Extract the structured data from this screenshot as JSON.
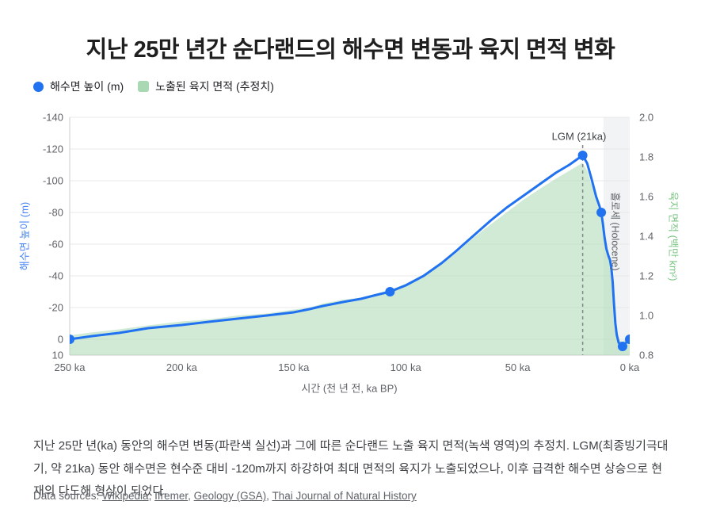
{
  "title": "지난 25만 년간 순다랜드의 해수면 변동과 육지 면적 변화",
  "legend": {
    "sea_level": "해수면 높이 (m)",
    "land_area": "노출된 육지 면적 (추정치)"
  },
  "colors": {
    "sea_line": "#2172f0",
    "sea_axis_label": "#4b87f5",
    "land_fill": "#a9d9b2",
    "land_axis_label": "#7cc585",
    "tick_text": "#5f6368",
    "gridline": "#e8e8e8",
    "axis_line": "#c9cbce",
    "lgm_line": "#85898d",
    "holocene_band": "#f1f3f4",
    "annotation_text": "#3c4043"
  },
  "chart_data": {
    "type": "line+area",
    "title": "지난 25만 년간 순다랜드의 해수면 변동과 육지 면적 변화",
    "x_axis": {
      "label": "시간 (천 년 전, ka BP)",
      "ticks": [
        250,
        200,
        150,
        100,
        50,
        0
      ],
      "tick_suffix": " ka",
      "range": [
        250,
        0
      ]
    },
    "y_left": {
      "label": "해수면 높이 (m)",
      "ticks": [
        -140,
        -120,
        -100,
        -80,
        -60,
        -40,
        -20,
        0,
        10
      ],
      "range": [
        -140,
        10
      ],
      "inverted": true
    },
    "y_right": {
      "label": "육지 면적 (백만 km²)",
      "ticks": [
        2.0,
        1.8,
        1.6,
        1.4,
        1.2,
        1.0,
        0.8
      ],
      "range": [
        0.8,
        2.0
      ]
    },
    "annotations": {
      "lgm": {
        "label": "LGM (21ka)",
        "ka": 21
      },
      "holocene": {
        "label": "홀로세 (Holocene)",
        "start_ka": 11.7,
        "end_ka": 0
      }
    },
    "series": [
      {
        "name": "해수면 높이 (m)",
        "type": "line",
        "axis": "left",
        "points": [
          [
            250,
            0
          ],
          [
            240,
            -2
          ],
          [
            228,
            -4
          ],
          [
            215,
            -7
          ],
          [
            200,
            -9
          ],
          [
            188,
            -11
          ],
          [
            175,
            -13
          ],
          [
            162,
            -15
          ],
          [
            150,
            -17
          ],
          [
            143,
            -19
          ],
          [
            137,
            -21
          ],
          [
            128,
            -23.5
          ],
          [
            120,
            -25.5
          ],
          [
            113,
            -28
          ],
          [
            107,
            -30
          ],
          [
            100,
            -34
          ],
          [
            92,
            -40
          ],
          [
            84,
            -48
          ],
          [
            78,
            -55
          ],
          [
            70,
            -65
          ],
          [
            62,
            -75
          ],
          [
            55,
            -83
          ],
          [
            48,
            -90
          ],
          [
            40,
            -98
          ],
          [
            33,
            -105
          ],
          [
            27,
            -110
          ],
          [
            21,
            -116
          ],
          [
            19,
            -111
          ],
          [
            17,
            -101
          ],
          [
            15,
            -90
          ],
          [
            13.5,
            -84
          ],
          [
            12.7,
            -80
          ],
          [
            12,
            -73
          ],
          [
            11.2,
            -64
          ],
          [
            10.4,
            -57
          ],
          [
            9.6,
            -53
          ],
          [
            8.8,
            -50
          ],
          [
            8.2,
            -45
          ],
          [
            7.6,
            -36
          ],
          [
            7,
            -22
          ],
          [
            6.4,
            -10
          ],
          [
            5.8,
            -3
          ],
          [
            5,
            2
          ],
          [
            4,
            4
          ],
          [
            3.2,
            4.5
          ],
          [
            2.2,
            3
          ],
          [
            1.2,
            1.5
          ],
          [
            0,
            0
          ]
        ],
        "markers": [
          [
            250,
            0
          ],
          [
            107,
            -30
          ],
          [
            21,
            -116
          ],
          [
            12.7,
            -80
          ],
          [
            3.2,
            4.5
          ],
          [
            0,
            0
          ]
        ]
      },
      {
        "name": "노출된 육지 면적 (추정치)",
        "type": "area",
        "axis": "right",
        "points": [
          [
            250,
            0.9
          ],
          [
            240,
            0.915
          ],
          [
            228,
            0.93
          ],
          [
            215,
            0.95
          ],
          [
            200,
            0.97
          ],
          [
            188,
            0.98
          ],
          [
            175,
            1.0
          ],
          [
            162,
            1.01
          ],
          [
            150,
            1.03
          ],
          [
            143,
            1.04
          ],
          [
            137,
            1.06
          ],
          [
            128,
            1.08
          ],
          [
            120,
            1.09
          ],
          [
            113,
            1.11
          ],
          [
            107,
            1.13
          ],
          [
            100,
            1.16
          ],
          [
            92,
            1.2
          ],
          [
            84,
            1.26
          ],
          [
            78,
            1.31
          ],
          [
            70,
            1.39
          ],
          [
            62,
            1.46
          ],
          [
            55,
            1.52
          ],
          [
            48,
            1.58
          ],
          [
            40,
            1.64
          ],
          [
            33,
            1.69
          ],
          [
            27,
            1.73
          ],
          [
            21,
            1.77
          ],
          [
            19,
            1.73
          ],
          [
            17,
            1.66
          ],
          [
            15,
            1.58
          ],
          [
            13.5,
            1.53
          ],
          [
            12.7,
            1.5
          ],
          [
            12,
            1.45
          ],
          [
            11.2,
            1.38
          ],
          [
            10.4,
            1.33
          ],
          [
            9.6,
            1.3
          ],
          [
            8.8,
            1.28
          ],
          [
            8.2,
            1.24
          ],
          [
            7.6,
            1.17
          ],
          [
            7,
            1.07
          ],
          [
            6.4,
            0.98
          ],
          [
            5.8,
            0.92
          ],
          [
            5,
            0.885
          ],
          [
            4,
            0.87
          ],
          [
            3.2,
            0.866
          ],
          [
            2.2,
            0.878
          ],
          [
            1.2,
            0.889
          ],
          [
            0,
            0.9
          ]
        ]
      }
    ]
  },
  "caption": "지난 25만 년(ka) 동안의 해수면 변동(파란색 실선)과 그에 따른 순다랜드 노출 육지 면적(녹색 영역)의 추정치. LGM(최종빙기극대기, 약 21ka) 동안 해수면은 현수준 대비 -120m까지 하강하여 최대 면적의 육지가 노출되었으나, 이후 급격한 해수면 상승으로 현재의 다도해 형상이 되었다.",
  "sources": {
    "prefix": "Data sources: ",
    "separator": ", ",
    "links": [
      "Wikipedia",
      "Ifremer",
      "Geology (GSA)",
      "Thai Journal of Natural History"
    ]
  }
}
